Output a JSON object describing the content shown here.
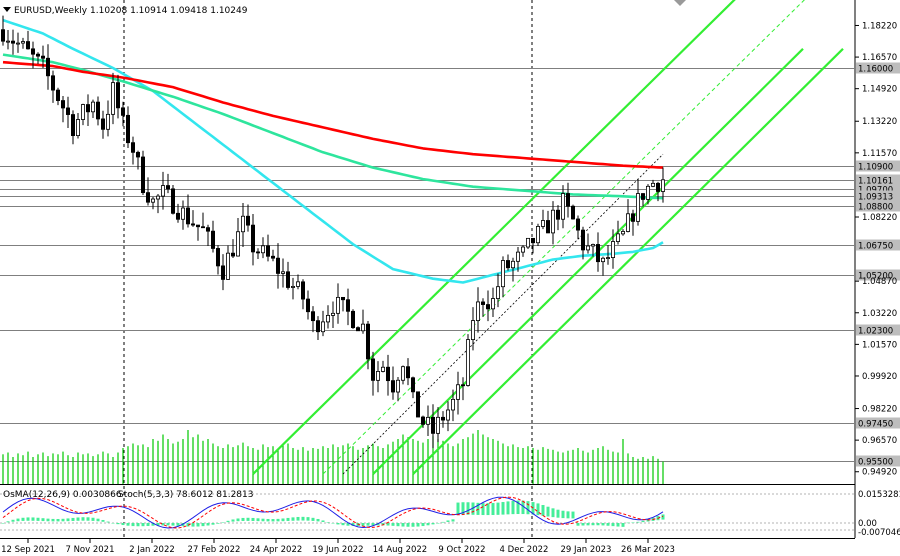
{
  "header": {
    "symbol": "EURUSD,Weekly",
    "ohlc": "1.10208 1.10914 1.09418 1.10249"
  },
  "oscillator": {
    "osma_label": "OsMA(12,26,9) 0.0030866",
    "stoch_label": "Stoch(5,3,3) 78.6012 81.2813"
  },
  "colors": {
    "bull": "#00c800",
    "bear": "#000000",
    "ma_red": "#ff0000",
    "ma_green": "#2ee59d",
    "ma_cyan": "#33e6ee",
    "channel": "#33ee33",
    "osma_hist": "#44ee99",
    "stoch_main": "#1e1ee6",
    "stoch_signal": "#ff0000"
  },
  "chart_data": {
    "type": "candlestick",
    "title": "EURUSD,Weekly",
    "ylim": [
      0.9428,
      1.1955
    ],
    "y_ticks": [
      1.1822,
      1.1657,
      1.1492,
      1.1322,
      1.1157,
      1.0822,
      1.0487,
      1.0322,
      1.0157,
      0.9992,
      0.9822,
      0.9657,
      0.9492
    ],
    "y_tick_labels": [
      "1.18220",
      "1.16570",
      "1.14920",
      "1.13220",
      "1.11570",
      "1.08220",
      "1.04870",
      "1.03220",
      "1.01570",
      "0.99920",
      "0.98220",
      "0.96570",
      "0.94920"
    ],
    "levels": [
      {
        "value": 1.16,
        "label": "1.16000"
      },
      {
        "value": 1.109,
        "label": "1.10900"
      },
      {
        "value": 1.10161,
        "label": "1.10161"
      },
      {
        "value": 1.097,
        "label": "1.09700"
      },
      {
        "value": 1.09313,
        "label": "1.09313"
      },
      {
        "value": 1.088,
        "label": "1.08800"
      },
      {
        "value": 1.0675,
        "label": "1.06750"
      },
      {
        "value": 1.052,
        "label": "1.05200"
      },
      {
        "value": 1.023,
        "label": "1.02300"
      },
      {
        "value": 0.9745,
        "label": "0.97450"
      },
      {
        "value": 0.955,
        "label": "0.95500"
      }
    ],
    "x_labels": [
      "12 Sep 2021",
      "7 Nov 2021",
      "2 Jan 2022",
      "27 Feb 2022",
      "24 Apr 2022",
      "19 Jun 2022",
      "14 Aug 2022",
      "9 Oct 2022",
      "4 Dec 2022",
      "29 Jan 2023",
      "26 Mar 2023"
    ],
    "close_path": [
      [
        0,
        1.18
      ],
      [
        8,
        1.16
      ],
      [
        14,
        1.13
      ],
      [
        18,
        1.142
      ],
      [
        20,
        1.13
      ],
      [
        22,
        1.148
      ],
      [
        24,
        1.13
      ],
      [
        26,
        1.118
      ],
      [
        28,
        1.1
      ],
      [
        30,
        1.09
      ],
      [
        32,
        1.094
      ],
      [
        34,
        1.09
      ],
      [
        36,
        1.084
      ],
      [
        40,
        1.075
      ],
      [
        44,
        1.055
      ],
      [
        48,
        1.078
      ],
      [
        50,
        1.067
      ],
      [
        54,
        1.058
      ],
      [
        56,
        1.052
      ],
      [
        60,
        1.04
      ],
      [
        62,
        1.025
      ],
      [
        66,
        1.037
      ],
      [
        70,
        1.03
      ],
      [
        72,
        1.025
      ],
      [
        74,
        1.0
      ],
      [
        76,
        1.005
      ],
      [
        78,
        0.995
      ],
      [
        80,
        1.008
      ],
      [
        82,
        0.985
      ],
      [
        84,
        0.975
      ],
      [
        86,
        0.97
      ],
      [
        88,
        0.978
      ],
      [
        90,
        0.985
      ],
      [
        92,
        0.995
      ],
      [
        94,
        1.03
      ],
      [
        96,
        1.04
      ],
      [
        98,
        1.038
      ],
      [
        100,
        1.055
      ],
      [
        102,
        1.058
      ],
      [
        104,
        1.062
      ],
      [
        106,
        1.07
      ],
      [
        108,
        1.075
      ],
      [
        110,
        1.082
      ],
      [
        112,
        1.089
      ],
      [
        114,
        1.08
      ],
      [
        116,
        1.068
      ],
      [
        118,
        1.063
      ],
      [
        120,
        1.057
      ],
      [
        122,
        1.065
      ],
      [
        124,
        1.072
      ],
      [
        126,
        1.085
      ],
      [
        128,
        1.095
      ],
      [
        130,
        1.1
      ],
      [
        132,
        1.102
      ]
    ],
    "ma_red": [
      [
        0,
        1.163
      ],
      [
        10,
        1.161
      ],
      [
        16,
        1.158
      ],
      [
        24,
        1.155
      ],
      [
        34,
        1.15
      ],
      [
        44,
        1.142
      ],
      [
        54,
        1.135
      ],
      [
        64,
        1.129
      ],
      [
        74,
        1.123
      ],
      [
        84,
        1.118
      ],
      [
        94,
        1.115
      ],
      [
        104,
        1.113
      ],
      [
        114,
        1.111
      ],
      [
        124,
        1.109
      ],
      [
        132,
        1.108
      ]
    ],
    "ma_green": [
      [
        0,
        1.167
      ],
      [
        10,
        1.163
      ],
      [
        16,
        1.159
      ],
      [
        24,
        1.153
      ],
      [
        34,
        1.145
      ],
      [
        44,
        1.136
      ],
      [
        54,
        1.126
      ],
      [
        64,
        1.116
      ],
      [
        74,
        1.108
      ],
      [
        84,
        1.102
      ],
      [
        94,
        1.098
      ],
      [
        104,
        1.096
      ],
      [
        114,
        1.094
      ],
      [
        124,
        1.093
      ],
      [
        132,
        1.092
      ]
    ],
    "ma_cyan": [
      [
        0,
        1.185
      ],
      [
        8,
        1.178
      ],
      [
        14,
        1.17
      ],
      [
        22,
        1.16
      ],
      [
        30,
        1.148
      ],
      [
        40,
        1.128
      ],
      [
        50,
        1.108
      ],
      [
        60,
        1.088
      ],
      [
        70,
        1.068
      ],
      [
        78,
        1.055
      ],
      [
        86,
        1.05
      ],
      [
        92,
        1.048
      ],
      [
        98,
        1.052
      ],
      [
        104,
        1.056
      ],
      [
        110,
        1.06
      ],
      [
        116,
        1.062
      ],
      [
        122,
        1.063
      ],
      [
        126,
        1.064
      ],
      [
        130,
        1.066
      ],
      [
        132,
        1.069
      ]
    ],
    "channel_lines": [
      {
        "from": [
          50,
          0.948
        ],
        "to": [
          148,
          1.2
        ]
      },
      {
        "from": [
          74,
          0.948
        ],
        "to": [
          160,
          1.17
        ]
      },
      {
        "from": [
          82,
          0.948
        ],
        "to": [
          168,
          1.17
        ]
      }
    ],
    "channel_mid_dashed": {
      "from": [
        64,
        0.948
      ],
      "to": [
        162,
        1.2
      ]
    },
    "volume": [
      0.33,
      0.35,
      0.3,
      0.34,
      0.32,
      0.36,
      0.3,
      0.33,
      0.35,
      0.31,
      0.34,
      0.33,
      0.36,
      0.32,
      0.3,
      0.35,
      0.33,
      0.34,
      0.31,
      0.33,
      0.36,
      0.34,
      0.3,
      0.35,
      0.4,
      0.42,
      0.45,
      0.43,
      0.44,
      0.41,
      0.5,
      0.48,
      0.55,
      0.5,
      0.45,
      0.47,
      0.5,
      0.6,
      0.52,
      0.55,
      0.48,
      0.5,
      0.45,
      0.42,
      0.4,
      0.44,
      0.41,
      0.43,
      0.46,
      0.42,
      0.4,
      0.38,
      0.44,
      0.41,
      0.42,
      0.39,
      0.43,
      0.45,
      0.4,
      0.38,
      0.41,
      0.37,
      0.4,
      0.39,
      0.42,
      0.4,
      0.44,
      0.41,
      0.43,
      0.45,
      0.42,
      0.38,
      0.4,
      0.43,
      0.45,
      0.42,
      0.4,
      0.44,
      0.47,
      0.5,
      0.55,
      0.52,
      0.5,
      0.48,
      0.46,
      0.5,
      0.53,
      0.5,
      0.48,
      0.45,
      0.42,
      0.45,
      0.5,
      0.52,
      0.56,
      0.6,
      0.55,
      0.52,
      0.5,
      0.48,
      0.45,
      0.42,
      0.44,
      0.41,
      0.4,
      0.42,
      0.4,
      0.38,
      0.41,
      0.39,
      0.38,
      0.36,
      0.35,
      0.37,
      0.38,
      0.4,
      0.37,
      0.35,
      0.38,
      0.4,
      0.42,
      0.38,
      0.36,
      0.35,
      0.5,
      0.34,
      0.3,
      0.28,
      0.3,
      0.28,
      0.31,
      0.28,
      0.25
    ],
    "osc_ticks": [
      "0.0153281",
      "0.00",
      "-0.0070466"
    ]
  }
}
